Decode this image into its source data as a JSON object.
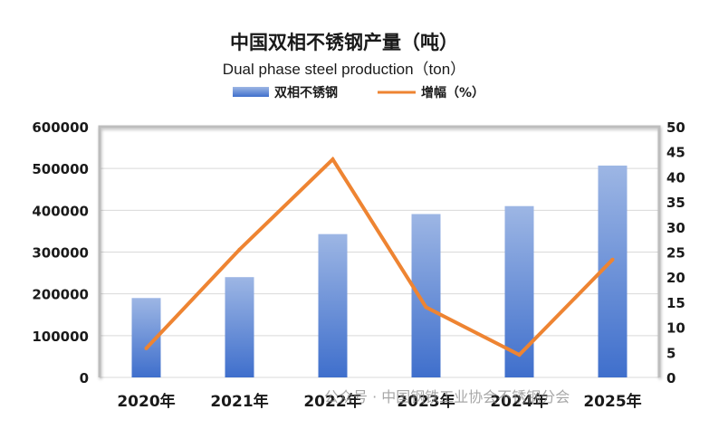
{
  "chart_data": {
    "type": "bar+line",
    "title": "中国双相不锈钢产量（吨）",
    "subtitle": "Dual phase steel production（ton）",
    "categories": [
      "2020年",
      "2021年",
      "2022年",
      "2023年",
      "2024年",
      "2025年"
    ],
    "series": [
      {
        "name": "双相不锈钢",
        "type": "bar",
        "axis": "left",
        "values": [
          190000,
          240000,
          343000,
          391000,
          410000,
          507000
        ],
        "color": "#4a78d0"
      },
      {
        "name": "增幅（%）",
        "type": "line",
        "axis": "right",
        "values": [
          5.8,
          25.5,
          43.5,
          14,
          4.5,
          23.5
        ],
        "color": "#ee8432"
      }
    ],
    "ylim_left": [
      0,
      600000
    ],
    "yticks_left": [
      "0",
      "100000",
      "200000",
      "300000",
      "400000",
      "500000",
      "600000"
    ],
    "ylim_right": [
      0,
      50
    ],
    "yticks_right": [
      "0",
      "5",
      "10",
      "15",
      "20",
      "25",
      "30",
      "35",
      "40",
      "45",
      "50"
    ],
    "grid": true,
    "legend_position": "top"
  },
  "watermark": {
    "text": "公众号 · 中国钢铁工业协会不锈钢分会"
  }
}
